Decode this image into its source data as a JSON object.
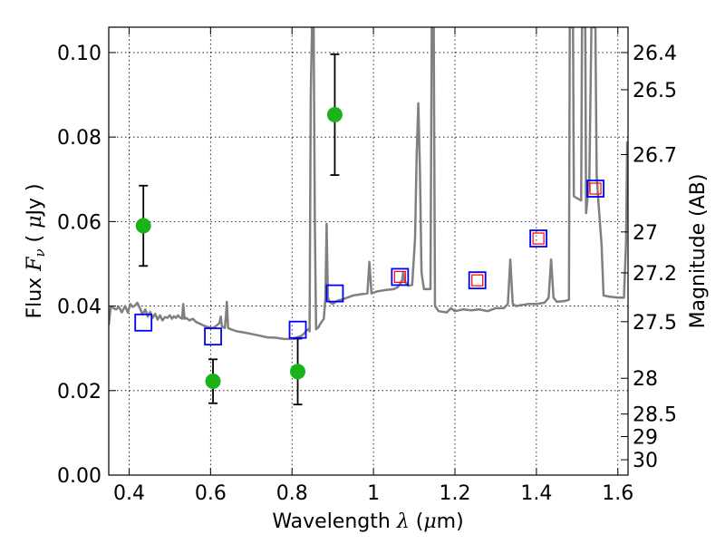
{
  "chart_data": {
    "type": "scatter",
    "xlabel": {
      "pre": "Wavelength ",
      "symbol": "λ",
      "unit_open": " (",
      "unit_mu": "μ",
      "unit_rest": "m)"
    },
    "ylabel": {
      "pre": "Flux ",
      "symbol": "F",
      "sub": "ν",
      "unit_open": " ( ",
      "unit_mu": "μ",
      "unit_rest": "Jy )"
    },
    "y2label": "Magnitude (AB)",
    "xlim": [
      0.35,
      1.625
    ],
    "ylim": [
      0.0,
      0.106
    ],
    "grid": true,
    "x_ticks": [
      0.4,
      0.6,
      0.8,
      1.0,
      1.2,
      1.4,
      1.6
    ],
    "x_tick_labels": [
      "0.4",
      "0.6",
      "0.8",
      "1",
      "1.2",
      "1.4",
      "1.6"
    ],
    "y_ticks": [
      0.0,
      0.02,
      0.04,
      0.06,
      0.08,
      0.1
    ],
    "y_tick_labels": [
      "0.00",
      "0.02",
      "0.04",
      "0.06",
      "0.08",
      "0.10"
    ],
    "mag_ticks": [
      26.4,
      26.5,
      26.7,
      27,
      27.2,
      27.5,
      28,
      28.5,
      29,
      30
    ],
    "mag_tick_labels": [
      "26.4",
      "26.5",
      "26.7",
      "27",
      "27.2",
      "27.5",
      "28",
      "28.5",
      "29",
      "30"
    ],
    "series": [
      {
        "kind": "observed_photometry",
        "color": "#1ab31a",
        "points": [
          {
            "x": 0.435,
            "y": 0.059,
            "err": 0.0095
          },
          {
            "x": 0.606,
            "y": 0.0222,
            "err": 0.0052
          },
          {
            "x": 0.814,
            "y": 0.0245,
            "err": 0.0078
          },
          {
            "x": 0.905,
            "y": 0.0853,
            "err": 0.0143
          }
        ]
      },
      {
        "kind": "model_photometry_square",
        "color": "#0000ff",
        "points": [
          {
            "x": 0.435,
            "y": 0.0361
          },
          {
            "x": 0.606,
            "y": 0.0328
          },
          {
            "x": 0.814,
            "y": 0.0344
          },
          {
            "x": 0.905,
            "y": 0.043
          },
          {
            "x": 1.065,
            "y": 0.0469
          },
          {
            "x": 1.255,
            "y": 0.0461
          },
          {
            "x": 1.405,
            "y": 0.056
          },
          {
            "x": 1.545,
            "y": 0.0678
          }
        ]
      },
      {
        "kind": "model_photometry_inner",
        "color": "#ff0000",
        "points": [
          {
            "x": 1.065,
            "y": 0.0469
          },
          {
            "x": 1.255,
            "y": 0.0461
          },
          {
            "x": 1.405,
            "y": 0.056
          },
          {
            "x": 1.545,
            "y": 0.0678
          }
        ]
      },
      {
        "kind": "model_spectrum",
        "color": "#808080",
        "points": [
          [
            0.35,
            0.0355
          ],
          [
            0.355,
            0.0398
          ],
          [
            0.36,
            0.0396
          ],
          [
            0.368,
            0.0392
          ],
          [
            0.375,
            0.0398
          ],
          [
            0.382,
            0.0385
          ],
          [
            0.39,
            0.04
          ],
          [
            0.397,
            0.0385
          ],
          [
            0.403,
            0.0405
          ],
          [
            0.409,
            0.0398
          ],
          [
            0.415,
            0.0402
          ],
          [
            0.42,
            0.0408
          ],
          [
            0.426,
            0.0396
          ],
          [
            0.433,
            0.038
          ],
          [
            0.44,
            0.0392
          ],
          [
            0.446,
            0.0375
          ],
          [
            0.452,
            0.0386
          ],
          [
            0.458,
            0.0372
          ],
          [
            0.464,
            0.0382
          ],
          [
            0.47,
            0.0368
          ],
          [
            0.476,
            0.0378
          ],
          [
            0.482,
            0.0366
          ],
          [
            0.488,
            0.0374
          ],
          [
            0.494,
            0.0372
          ],
          [
            0.5,
            0.0378
          ],
          [
            0.505,
            0.037
          ],
          [
            0.51,
            0.0376
          ],
          [
            0.515,
            0.0372
          ],
          [
            0.52,
            0.0378
          ],
          [
            0.525,
            0.0373
          ],
          [
            0.53,
            0.037
          ],
          [
            0.533,
            0.0405
          ],
          [
            0.536,
            0.037
          ],
          [
            0.54,
            0.0372
          ],
          [
            0.548,
            0.0366
          ],
          [
            0.556,
            0.037
          ],
          [
            0.565,
            0.0362
          ],
          [
            0.575,
            0.0358
          ],
          [
            0.585,
            0.0353
          ],
          [
            0.595,
            0.035
          ],
          [
            0.606,
            0.0348
          ],
          [
            0.615,
            0.0354
          ],
          [
            0.622,
            0.036
          ],
          [
            0.625,
            0.0375
          ],
          [
            0.628,
            0.0352
          ],
          [
            0.635,
            0.0348
          ],
          [
            0.638,
            0.038
          ],
          [
            0.64,
            0.041
          ],
          [
            0.643,
            0.0348
          ],
          [
            0.65,
            0.0345
          ],
          [
            0.665,
            0.034
          ],
          [
            0.68,
            0.0338
          ],
          [
            0.7,
            0.0334
          ],
          [
            0.72,
            0.033
          ],
          [
            0.74,
            0.0326
          ],
          [
            0.76,
            0.0325
          ],
          [
            0.78,
            0.0322
          ],
          [
            0.8,
            0.0322
          ],
          [
            0.82,
            0.0328
          ],
          [
            0.83,
            0.0335
          ],
          [
            0.835,
            0.0342
          ],
          [
            0.84,
            0.0345
          ],
          [
            0.843,
            0.034
          ],
          [
            0.846,
            0.09
          ],
          [
            0.849,
            0.106
          ],
          [
            0.853,
            0.106
          ],
          [
            0.856,
            0.06
          ],
          [
            0.859,
            0.0345
          ],
          [
            0.865,
            0.035
          ],
          [
            0.872,
            0.0362
          ],
          [
            0.878,
            0.037
          ],
          [
            0.882,
            0.042
          ],
          [
            0.885,
            0.0595
          ],
          [
            0.888,
            0.042
          ],
          [
            0.892,
            0.041
          ],
          [
            0.9,
            0.0405
          ],
          [
            0.91,
            0.0412
          ],
          [
            0.93,
            0.0418
          ],
          [
            0.95,
            0.0425
          ],
          [
            0.97,
            0.0428
          ],
          [
            0.985,
            0.043
          ],
          [
            0.99,
            0.0505
          ],
          [
            0.995,
            0.043
          ],
          [
            1.01,
            0.0435
          ],
          [
            1.03,
            0.0438
          ],
          [
            1.05,
            0.044
          ],
          [
            1.06,
            0.0445
          ],
          [
            1.07,
            0.046
          ],
          [
            1.073,
            0.048
          ],
          [
            1.076,
            0.046
          ],
          [
            1.085,
            0.0448
          ],
          [
            1.095,
            0.045
          ],
          [
            1.102,
            0.056
          ],
          [
            1.106,
            0.076
          ],
          [
            1.11,
            0.088
          ],
          [
            1.114,
            0.072
          ],
          [
            1.118,
            0.048
          ],
          [
            1.124,
            0.044
          ],
          [
            1.13,
            0.044
          ],
          [
            1.136,
            0.044
          ],
          [
            1.14,
            0.044
          ],
          [
            1.143,
            0.106
          ],
          [
            1.148,
            0.106
          ],
          [
            1.151,
            0.04
          ],
          [
            1.16,
            0.0388
          ],
          [
            1.18,
            0.0385
          ],
          [
            1.19,
            0.0395
          ],
          [
            1.2,
            0.0388
          ],
          [
            1.22,
            0.0392
          ],
          [
            1.24,
            0.039
          ],
          [
            1.26,
            0.0392
          ],
          [
            1.28,
            0.0388
          ],
          [
            1.3,
            0.0395
          ],
          [
            1.32,
            0.0395
          ],
          [
            1.33,
            0.0405
          ],
          [
            1.336,
            0.051
          ],
          [
            1.342,
            0.0405
          ],
          [
            1.35,
            0.04
          ],
          [
            1.36,
            0.0402
          ],
          [
            1.38,
            0.0405
          ],
          [
            1.4,
            0.0405
          ],
          [
            1.42,
            0.0408
          ],
          [
            1.43,
            0.042
          ],
          [
            1.436,
            0.051
          ],
          [
            1.442,
            0.042
          ],
          [
            1.45,
            0.041
          ],
          [
            1.47,
            0.0412
          ],
          [
            1.48,
            0.0415
          ],
          [
            1.482,
            0.106
          ],
          [
            1.49,
            0.106
          ],
          [
            1.492,
            0.066
          ],
          [
            1.5,
            0.0655
          ],
          [
            1.51,
            0.065
          ],
          [
            1.512,
            0.106
          ],
          [
            1.52,
            0.106
          ],
          [
            1.522,
            0.062
          ],
          [
            1.53,
            0.07
          ],
          [
            1.535,
            0.106
          ],
          [
            1.545,
            0.106
          ],
          [
            1.548,
            0.071
          ],
          [
            1.552,
            0.065
          ],
          [
            1.56,
            0.0545
          ],
          [
            1.565,
            0.0425
          ],
          [
            1.58,
            0.0422
          ],
          [
            1.6,
            0.042
          ],
          [
            1.615,
            0.042
          ],
          [
            1.62,
            0.055
          ],
          [
            1.623,
            0.079
          ]
        ]
      }
    ]
  }
}
